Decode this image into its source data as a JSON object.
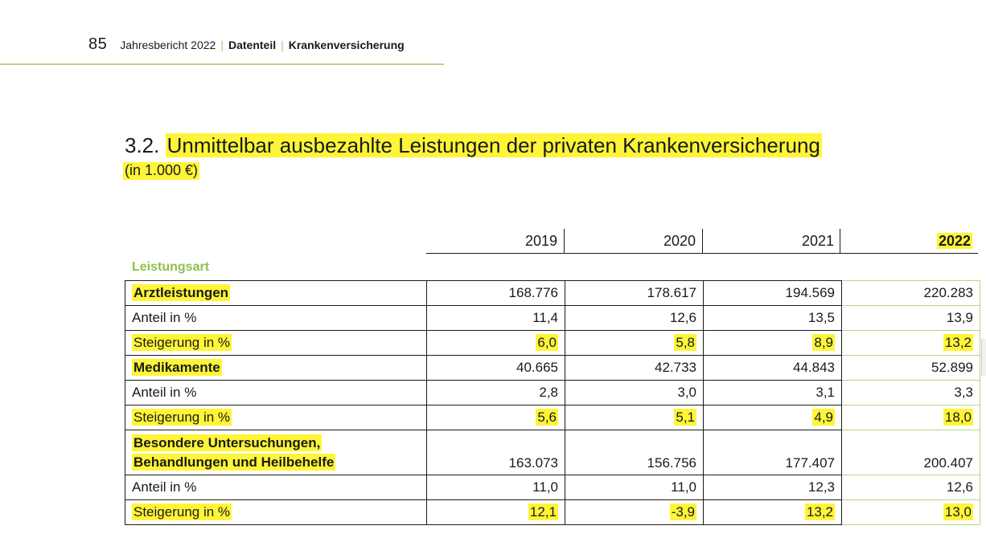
{
  "header": {
    "page_number": "85",
    "report": "Jahresbericht 2022",
    "section": "Datenteil",
    "subsection": "Krankenversicherung",
    "separator": "|"
  },
  "title": {
    "number": "3.2.",
    "text": "Unmittelbar ausbezahlte Leistungen der privaten Krankenversicherung",
    "unit": "(in 1.000 €)"
  },
  "table": {
    "years": [
      "2019",
      "2020",
      "2021",
      "2022"
    ],
    "group_label": "Leistungsart",
    "rows": [
      {
        "label": "Arztleistungen",
        "values": [
          "168.776",
          "178.617",
          "194.569",
          "220.283"
        ]
      },
      {
        "label": "Anteil in %",
        "values": [
          "11,4",
          "12,6",
          "13,5",
          "13,9"
        ]
      },
      {
        "label": "Steigerung in %",
        "values": [
          "6,0",
          "5,8",
          "8,9",
          "13,2"
        ]
      },
      {
        "label": "Medikamente",
        "values": [
          "40.665",
          "42.733",
          "44.843",
          "52.899"
        ]
      },
      {
        "label": "Anteil in %",
        "values": [
          "2,8",
          "3,0",
          "3,1",
          "3,3"
        ]
      },
      {
        "label": "Steigerung in %",
        "values": [
          "5,6",
          "5,1",
          "4,9",
          "18,0"
        ]
      },
      {
        "label_line1": "Besondere Untersuchungen,",
        "label_line2": "Behandlungen und Heilbehelfe",
        "values": [
          "163.073",
          "156.756",
          "177.407",
          "200.407"
        ]
      },
      {
        "label": "Anteil in %",
        "values": [
          "11,0",
          "11,0",
          "12,3",
          "12,6"
        ]
      },
      {
        "label": "Steigerung in %",
        "values": [
          "12,1",
          "-3,9",
          "13,2",
          "13,0"
        ]
      }
    ]
  },
  "colors": {
    "highlight": "#fff538",
    "accent_green": "#8fbf4a",
    "rule_green": "#b5d68a"
  }
}
